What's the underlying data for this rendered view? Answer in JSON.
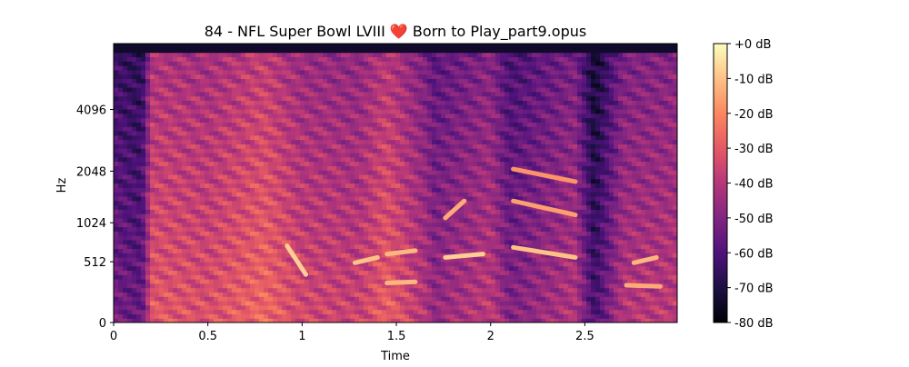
{
  "chart_data": {
    "type": "heatmap",
    "title": "84 - NFL Super Bowl LVIII ❤️ Born to Play_part9.opus",
    "xlabel": "Time",
    "ylabel": "Hz",
    "xlim": [
      0,
      2.99
    ],
    "x_ticks": [
      {
        "value": 0,
        "label": "0"
      },
      {
        "value": 0.5,
        "label": "0.5"
      },
      {
        "value": 1,
        "label": "1"
      },
      {
        "value": 1.5,
        "label": "1.5"
      },
      {
        "value": 2,
        "label": "2"
      },
      {
        "value": 2.5,
        "label": "2.5"
      }
    ],
    "y_scale": "log-frequency (mel-like)",
    "ylim": [
      0,
      8000
    ],
    "y_ticks": [
      {
        "value": 0,
        "label": "0"
      },
      {
        "value": 512,
        "label": "512"
      },
      {
        "value": 1024,
        "label": "1024"
      },
      {
        "value": 2048,
        "label": "2048"
      },
      {
        "value": 4096,
        "label": "4096"
      }
    ],
    "colormap": "magma",
    "colorbar": {
      "range": [
        -80,
        0
      ],
      "ticks": [
        {
          "value": 0,
          "label": "+0 dB"
        },
        {
          "value": -10,
          "label": "-10 dB"
        },
        {
          "value": -20,
          "label": "-20 dB"
        },
        {
          "value": -30,
          "label": "-30 dB"
        },
        {
          "value": -40,
          "label": "-40 dB"
        },
        {
          "value": -50,
          "label": "-50 dB"
        },
        {
          "value": -60,
          "label": "-60 dB"
        },
        {
          "value": -70,
          "label": "-70 dB"
        },
        {
          "value": -80,
          "label": "-80 dB"
        }
      ]
    },
    "grid": false,
    "legend": "colorbar-right",
    "harmonic_tracks": [
      {
        "t0": 0.92,
        "t1": 1.02,
        "f0": 700,
        "f1": 380,
        "level": -8
      },
      {
        "t0": 1.28,
        "t1": 1.4,
        "f0": 500,
        "f1": 560,
        "level": -10
      },
      {
        "t0": 1.45,
        "t1": 1.6,
        "f0": 600,
        "f1": 640,
        "level": -12
      },
      {
        "t0": 1.45,
        "t1": 1.6,
        "f0": 300,
        "f1": 310,
        "level": -12
      },
      {
        "t0": 1.76,
        "t1": 1.96,
        "f0": 560,
        "f1": 600,
        "level": -8
      },
      {
        "t0": 1.76,
        "t1": 1.86,
        "f0": 1100,
        "f1": 1400,
        "level": -14
      },
      {
        "t0": 2.12,
        "t1": 2.45,
        "f0": 680,
        "f1": 560,
        "level": -10
      },
      {
        "t0": 2.12,
        "t1": 2.45,
        "f0": 1400,
        "f1": 1150,
        "level": -16
      },
      {
        "t0": 2.12,
        "t1": 2.45,
        "f0": 2100,
        "f1": 1800,
        "level": -18
      },
      {
        "t0": 2.76,
        "t1": 2.88,
        "f0": 500,
        "f1": 560,
        "level": -12
      },
      {
        "t0": 2.72,
        "t1": 2.9,
        "f0": 280,
        "f1": 270,
        "level": -14
      }
    ],
    "energy_profile": [
      {
        "t": 0.0,
        "level": -52
      },
      {
        "t": 0.15,
        "level": -56
      },
      {
        "t": 0.2,
        "level": -30
      },
      {
        "t": 0.5,
        "level": -32
      },
      {
        "t": 0.8,
        "level": -26
      },
      {
        "t": 1.0,
        "level": -34
      },
      {
        "t": 1.3,
        "level": -36
      },
      {
        "t": 1.45,
        "level": -28
      },
      {
        "t": 1.65,
        "level": -40
      },
      {
        "t": 1.7,
        "level": -46
      },
      {
        "t": 2.0,
        "level": -38
      },
      {
        "t": 2.1,
        "level": -50
      },
      {
        "t": 2.45,
        "level": -40
      },
      {
        "t": 2.55,
        "level": -62
      },
      {
        "t": 2.7,
        "level": -40
      },
      {
        "t": 2.99,
        "level": -38
      }
    ]
  }
}
